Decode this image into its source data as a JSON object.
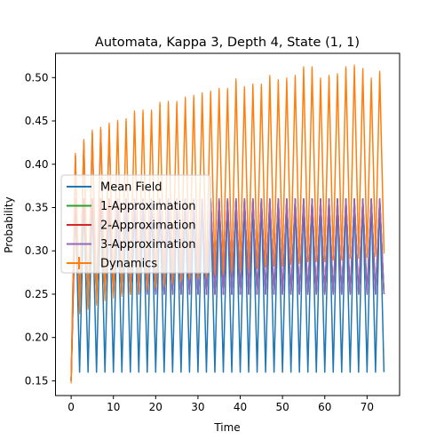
{
  "chart_data": {
    "type": "line",
    "title": "Automata, Kappa 3, Depth 4, State (1, 1)",
    "xlabel": "Time",
    "ylabel": "Probability",
    "xlim": [
      -3.7,
      77.7
    ],
    "ylim": [
      0.133,
      0.528
    ],
    "xticks": [
      0,
      10,
      20,
      30,
      40,
      50,
      60,
      70
    ],
    "yticks": [
      0.15,
      0.2,
      0.25,
      0.3,
      0.35,
      0.4,
      0.45,
      0.5
    ],
    "ytick_labels": [
      "0.15",
      "0.20",
      "0.25",
      "0.30",
      "0.35",
      "0.40",
      "0.45",
      "0.50"
    ],
    "legend_position": "center-left",
    "grid": false,
    "x_range": [
      0,
      74
    ],
    "oscillation_period": 2,
    "series": [
      {
        "name": "Mean Field",
        "color": "#1f77b4",
        "points": [
          [
            0,
            0.15
          ],
          [
            1,
            0.36
          ],
          [
            2,
            0.16
          ],
          [
            74,
            0.16
          ]
        ],
        "steady_high": 0.36,
        "steady_low": 0.16
      },
      {
        "name": "1-Approximation",
        "color": "#2ca02c",
        "points": [
          [
            0,
            0.15
          ],
          [
            1,
            0.36
          ],
          [
            2,
            0.25
          ],
          [
            74,
            0.25
          ]
        ],
        "steady_high": 0.36,
        "steady_low": 0.25
      },
      {
        "name": "2-Approximation",
        "color": "#d62728",
        "points": [
          [
            0,
            0.15
          ],
          [
            1,
            0.36
          ],
          [
            2,
            0.25
          ],
          [
            74,
            0.25
          ]
        ],
        "steady_high": 0.36,
        "steady_low": 0.25
      },
      {
        "name": "3-Approximation",
        "color": "#9467bd",
        "points": [
          [
            0,
            0.15
          ],
          [
            1,
            0.41
          ],
          [
            2,
            0.23
          ],
          [
            3,
            0.425
          ],
          [
            4,
            0.235
          ],
          [
            5,
            0.435
          ],
          [
            6,
            0.245
          ],
          [
            7,
            0.44
          ],
          [
            8,
            0.25
          ],
          [
            9,
            0.44
          ],
          [
            10,
            0.255
          ],
          [
            74,
            0.25
          ]
        ],
        "steady_high": 0.36,
        "steady_low": 0.25
      },
      {
        "name": "Dynamics",
        "color": "#ff7f0e",
        "error_bars": true,
        "peaks": [
          [
            1,
            0.41
          ],
          [
            3,
            0.426
          ],
          [
            5,
            0.437
          ],
          [
            7,
            0.44
          ],
          [
            9,
            0.445
          ],
          [
            11,
            0.448
          ],
          [
            13,
            0.45
          ],
          [
            15,
            0.459
          ],
          [
            17,
            0.46
          ],
          [
            19,
            0.46
          ],
          [
            21,
            0.469
          ],
          [
            23,
            0.47
          ],
          [
            25,
            0.47
          ],
          [
            27,
            0.475
          ],
          [
            29,
            0.477
          ],
          [
            31,
            0.48
          ],
          [
            33,
            0.482
          ],
          [
            35,
            0.485
          ],
          [
            37,
            0.485
          ],
          [
            39,
            0.496
          ],
          [
            41,
            0.487
          ],
          [
            43,
            0.49
          ],
          [
            45,
            0.49
          ],
          [
            47,
            0.5
          ],
          [
            49,
            0.495
          ],
          [
            51,
            0.497
          ],
          [
            53,
            0.5
          ],
          [
            55,
            0.51
          ],
          [
            57,
            0.51
          ],
          [
            59,
            0.497
          ],
          [
            61,
            0.5
          ],
          [
            63,
            0.502
          ],
          [
            65,
            0.51
          ],
          [
            67,
            0.512
          ],
          [
            69,
            0.508
          ],
          [
            71,
            0.497
          ],
          [
            73,
            0.505
          ]
        ],
        "troughs": [
          [
            0,
            0.15
          ],
          [
            2,
            0.23
          ],
          [
            4,
            0.235
          ],
          [
            6,
            0.24
          ],
          [
            8,
            0.245
          ],
          [
            10,
            0.248
          ],
          [
            12,
            0.25
          ],
          [
            14,
            0.252
          ],
          [
            16,
            0.255
          ],
          [
            18,
            0.258
          ],
          [
            20,
            0.26
          ],
          [
            22,
            0.262
          ],
          [
            24,
            0.265
          ],
          [
            26,
            0.267
          ],
          [
            28,
            0.27
          ],
          [
            30,
            0.27
          ],
          [
            32,
            0.272
          ],
          [
            34,
            0.275
          ],
          [
            36,
            0.276
          ],
          [
            38,
            0.278
          ],
          [
            40,
            0.28
          ],
          [
            42,
            0.28
          ],
          [
            44,
            0.282
          ],
          [
            46,
            0.284
          ],
          [
            48,
            0.285
          ],
          [
            50,
            0.285
          ],
          [
            52,
            0.287
          ],
          [
            54,
            0.288
          ],
          [
            56,
            0.29
          ],
          [
            58,
            0.29
          ],
          [
            60,
            0.29
          ],
          [
            62,
            0.292
          ],
          [
            64,
            0.292
          ],
          [
            66,
            0.294
          ],
          [
            68,
            0.294
          ],
          [
            70,
            0.295
          ],
          [
            72,
            0.296
          ],
          [
            74,
            0.3
          ]
        ]
      }
    ]
  }
}
